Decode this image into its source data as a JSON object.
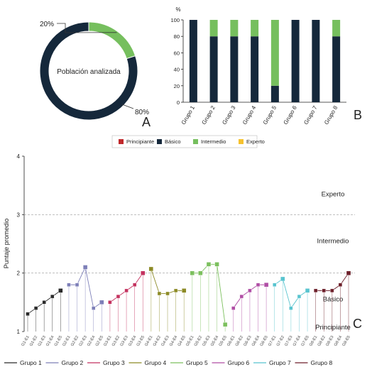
{
  "chart_data": [
    {
      "panel_letter": "A",
      "type": "pie",
      "center_label": "Población analizada",
      "slices": [
        {
          "label": "20%",
          "value": 20,
          "color": "#76bf5e"
        },
        {
          "label": "80%",
          "value": 80,
          "color": "#15283b"
        }
      ]
    },
    {
      "panel_letter": "B",
      "type": "bar",
      "stacked": true,
      "ylabel": "%",
      "ylim": [
        0,
        100
      ],
      "yticks": [
        "0",
        "20",
        "40",
        "60",
        "80",
        "100"
      ],
      "categories": [
        "Grupo 1",
        "Grupo 2",
        "Grupo 3",
        "Grupo 4",
        "Grupo 5",
        "Grupo 6",
        "Grupo 7",
        "Grupo 8"
      ],
      "series": [
        {
          "color": "#15283b",
          "values": [
            100,
            80,
            80,
            80,
            20,
            100,
            100,
            80
          ]
        },
        {
          "color": "#76bf5e",
          "values": [
            0,
            20,
            20,
            20,
            80,
            0,
            0,
            20
          ]
        }
      ]
    },
    {
      "panel_letter": "C",
      "type": "line",
      "ylabel": "Puntaje promedio",
      "ylim": [
        1,
        4
      ],
      "yticks": [
        "1",
        "2",
        "3",
        "4"
      ],
      "level_lines": [
        3,
        2
      ],
      "level_labels": [
        {
          "text": "Experto",
          "y": 3.35
        },
        {
          "text": "Intermedio",
          "y": 2.55
        },
        {
          "text": "Básico",
          "y": 1.55
        },
        {
          "text": "Principiante",
          "y": 1.07
        }
      ],
      "level_legend": [
        {
          "label": "Principiante",
          "color": "#c0282b"
        },
        {
          "label": "Básico",
          "color": "#15283b"
        },
        {
          "label": "Intermedio",
          "color": "#76bf5e"
        },
        {
          "label": "Experto",
          "color": "#f6c22e"
        }
      ],
      "groups": [
        {
          "name": "Grupo 1",
          "color": "#2a2a2a",
          "points": [
            {
              "label": "G1-E1",
              "y": 1.3,
              "level_color": "#15283b"
            },
            {
              "label": "G1-E2",
              "y": 1.4,
              "level_color": "#15283b"
            },
            {
              "label": "G1-E3",
              "y": 1.5,
              "level_color": "#15283b"
            },
            {
              "label": "G1-E4",
              "y": 1.6,
              "level_color": "#15283b"
            },
            {
              "label": "G1-E5",
              "y": 1.7,
              "level_color": "#15283b"
            }
          ]
        },
        {
          "name": "Grupo 2",
          "color": "#7d7fb8",
          "points": [
            {
              "label": "G2-E1",
              "y": 1.8,
              "level_color": "#15283b"
            },
            {
              "label": "G2-E2",
              "y": 1.8,
              "level_color": "#15283b"
            },
            {
              "label": "G2-E3",
              "y": 2.1,
              "level_color": "#76bf5e"
            },
            {
              "label": "G2-E4",
              "y": 1.4,
              "level_color": "#15283b"
            },
            {
              "label": "G2-E5",
              "y": 1.5,
              "level_color": "#15283b"
            }
          ]
        },
        {
          "name": "Grupo 3",
          "color": "#c4325f",
          "points": [
            {
              "label": "G3-E1",
              "y": 1.5,
              "level_color": "#15283b"
            },
            {
              "label": "G3-E2",
              "y": 1.6,
              "level_color": "#15283b"
            },
            {
              "label": "G3-E3",
              "y": 1.7,
              "level_color": "#15283b"
            },
            {
              "label": "G3-E4",
              "y": 1.8,
              "level_color": "#15283b"
            },
            {
              "label": "G3-E5",
              "y": 2.0,
              "level_color": "#76bf5e"
            }
          ]
        },
        {
          "name": "Grupo 4",
          "color": "#8c8a25",
          "points": [
            {
              "label": "G4-E1",
              "y": 2.07,
              "level_color": "#76bf5e"
            },
            {
              "label": "G4-E2",
              "y": 1.65,
              "level_color": "#15283b"
            },
            {
              "label": "G4-E3",
              "y": 1.65,
              "level_color": "#15283b"
            },
            {
              "label": "G4-E4",
              "y": 1.7,
              "level_color": "#15283b"
            },
            {
              "label": "G4-E5",
              "y": 1.7,
              "level_color": "#15283b"
            }
          ]
        },
        {
          "name": "Grupo 5",
          "color": "#7cc05e",
          "points": [
            {
              "label": "G5-E1",
              "y": 2.0,
              "level_color": "#76bf5e"
            },
            {
              "label": "G5-E2",
              "y": 2.0,
              "level_color": "#76bf5e"
            },
            {
              "label": "G5-E3",
              "y": 2.15,
              "level_color": "#76bf5e"
            },
            {
              "label": "G5-E4",
              "y": 2.15,
              "level_color": "#76bf5e"
            },
            {
              "label": "G5-E5",
              "y": 1.12,
              "level_color": "#15283b"
            }
          ]
        },
        {
          "name": "Grupo 6",
          "color": "#b04ea5",
          "points": [
            {
              "label": "G6-E1",
              "y": 1.4,
              "level_color": "#15283b"
            },
            {
              "label": "G6-E2",
              "y": 1.6,
              "level_color": "#15283b"
            },
            {
              "label": "G6-E3",
              "y": 1.7,
              "level_color": "#15283b"
            },
            {
              "label": "G6-E4",
              "y": 1.8,
              "level_color": "#15283b"
            },
            {
              "label": "G6-E5",
              "y": 1.8,
              "level_color": "#15283b"
            }
          ]
        },
        {
          "name": "Grupo 7",
          "color": "#58c4cf",
          "points": [
            {
              "label": "G7-E1",
              "y": 1.8,
              "level_color": "#15283b"
            },
            {
              "label": "G7-E2",
              "y": 1.9,
              "level_color": "#15283b"
            },
            {
              "label": "G7-E3",
              "y": 1.4,
              "level_color": "#15283b"
            },
            {
              "label": "G7-E4",
              "y": 1.6,
              "level_color": "#15283b"
            },
            {
              "label": "G7-E5",
              "y": 1.7,
              "level_color": "#15283b"
            }
          ]
        },
        {
          "name": "Grupo 8",
          "color": "#6d1f2a",
          "points": [
            {
              "label": "G8-E1",
              "y": 1.7,
              "level_color": "#15283b"
            },
            {
              "label": "G8-E2",
              "y": 1.7,
              "level_color": "#15283b"
            },
            {
              "label": "G8-E3",
              "y": 1.7,
              "level_color": "#15283b"
            },
            {
              "label": "G8-E4",
              "y": 1.8,
              "level_color": "#15283b"
            },
            {
              "label": "G8-E5",
              "y": 2.0,
              "level_color": "#76bf5e"
            }
          ]
        }
      ]
    }
  ]
}
